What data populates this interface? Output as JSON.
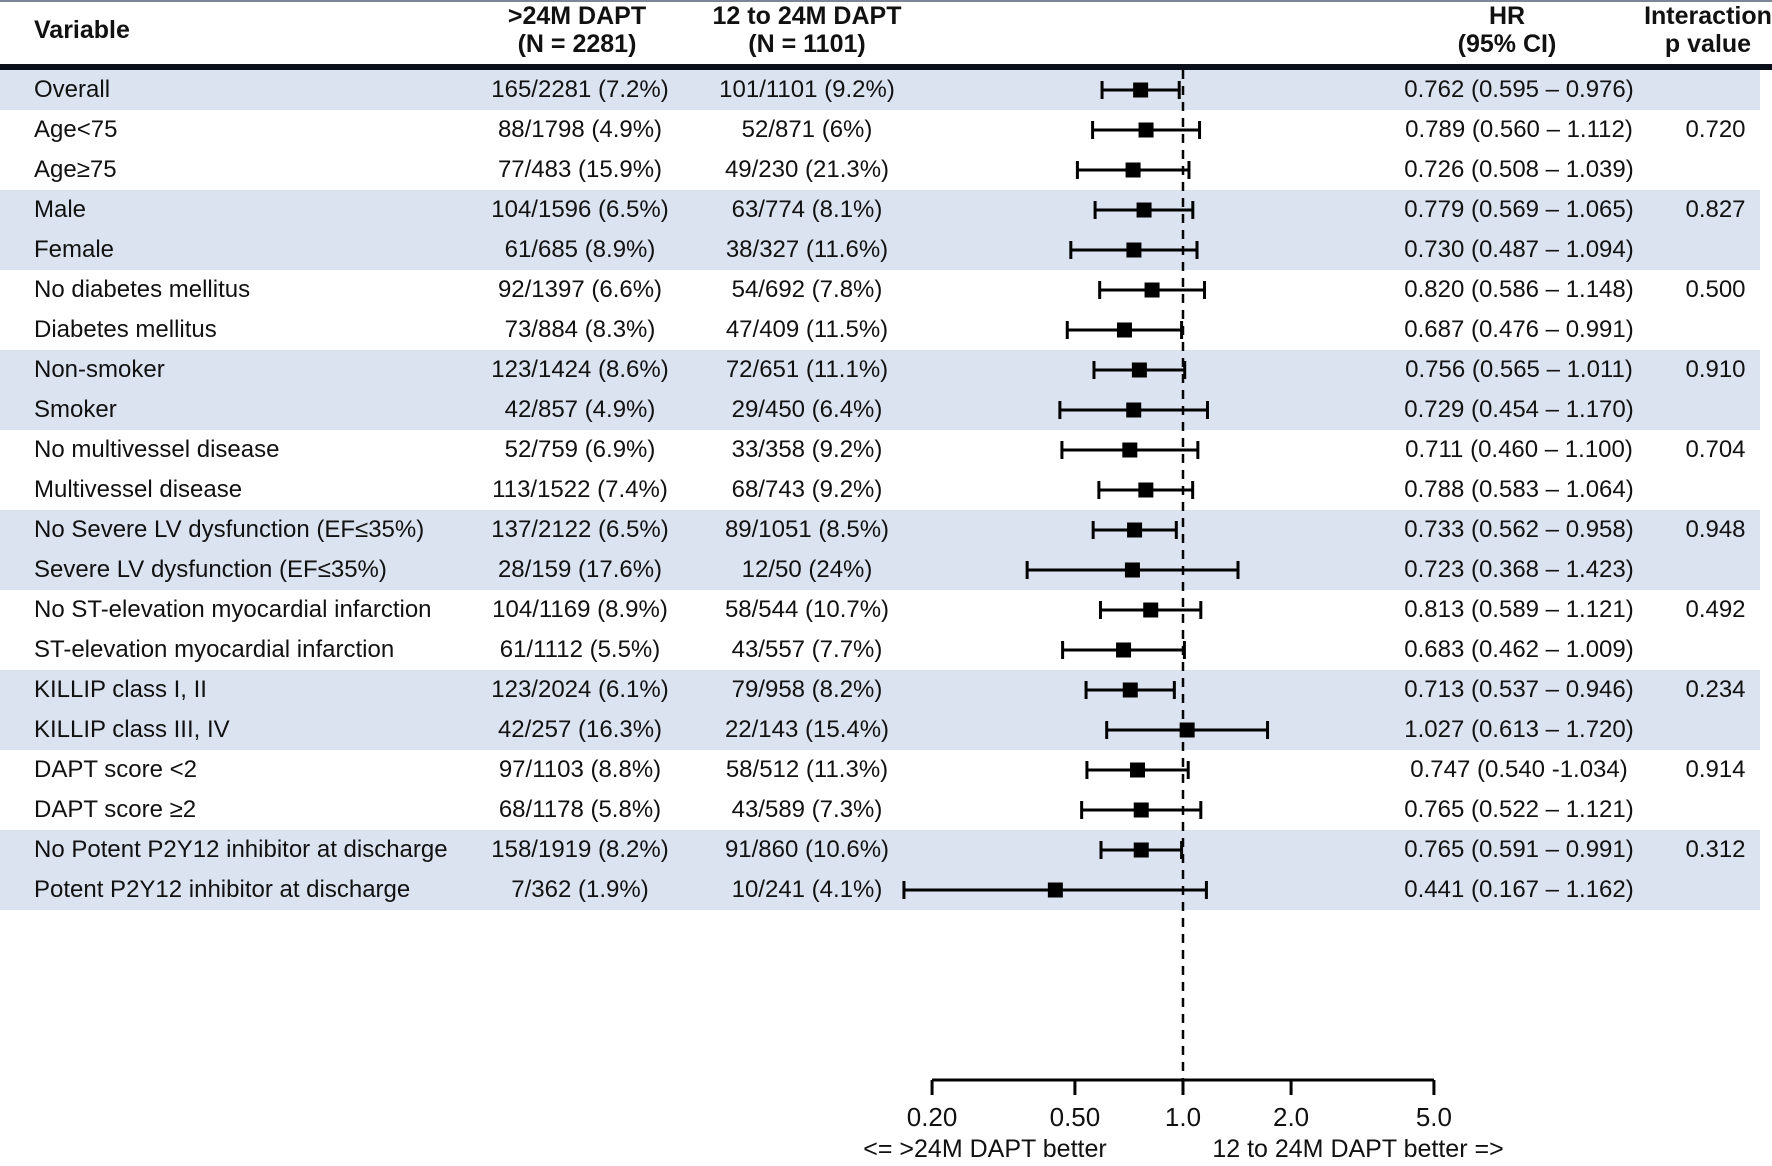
{
  "header": {
    "variable": "Variable",
    "group1_line1": ">24M DAPT",
    "group1_line2": "(N = 2281)",
    "group2_line1": "12 to 24M DAPT",
    "group2_line2": "(N = 1101)",
    "hr_line1": "HR",
    "hr_line2": "(95% CI)",
    "p_line1": "Interaction",
    "p_line2": "p value"
  },
  "colors": {
    "band": "#dce3f0",
    "marker": "#000000",
    "rule": "#0b0f1a"
  },
  "chart_data": {
    "type": "forest",
    "x_axis": {
      "scale": "log",
      "tick_labels": [
        "0.20",
        "0.50",
        "1.0",
        "2.0",
        "5.0"
      ],
      "tick_values": [
        0.2,
        0.5,
        1.0,
        2.0,
        5.0
      ],
      "range": [
        0.2,
        5.0
      ],
      "reference_line": 1.0,
      "left_direction_label": "<=  >24M DAPT better",
      "right_direction_label": "12 to 24M DAPT better  =>"
    },
    "rows": [
      {
        "variable": "Overall",
        "group1": "165/2281 (7.2%)",
        "group2": "101/1101 (9.2%)",
        "hr": 0.762,
        "ci_low": 0.595,
        "ci_high": 0.976,
        "hr_text": "0.762 (0.595 – 0.976)",
        "p_value": "",
        "shaded": true
      },
      {
        "variable": "Age<75",
        "group1": "88/1798 (4.9%)",
        "group2": "52/871 (6%)",
        "hr": 0.789,
        "ci_low": 0.56,
        "ci_high": 1.112,
        "hr_text": "0.789 (0.560 – 1.112)",
        "p_value": "0.720",
        "shaded": false
      },
      {
        "variable": "Age≥75",
        "group1": "77/483 (15.9%)",
        "group2": "49/230 (21.3%)",
        "hr": 0.726,
        "ci_low": 0.508,
        "ci_high": 1.039,
        "hr_text": "0.726 (0.508 – 1.039)",
        "p_value": "",
        "shaded": false
      },
      {
        "variable": "Male",
        "group1": "104/1596 (6.5%)",
        "group2": "63/774 (8.1%)",
        "hr": 0.779,
        "ci_low": 0.569,
        "ci_high": 1.065,
        "hr_text": "0.779 (0.569 – 1.065)",
        "p_value": "0.827",
        "shaded": true
      },
      {
        "variable": "Female",
        "group1": "61/685 (8.9%)",
        "group2": "38/327 (11.6%)",
        "hr": 0.73,
        "ci_low": 0.487,
        "ci_high": 1.094,
        "hr_text": "0.730 (0.487 – 1.094)",
        "p_value": "",
        "shaded": true
      },
      {
        "variable": "No diabetes mellitus",
        "group1": "92/1397 (6.6%)",
        "group2": "54/692 (7.8%)",
        "hr": 0.82,
        "ci_low": 0.586,
        "ci_high": 1.148,
        "hr_text": "0.820 (0.586 – 1.148)",
        "p_value": "0.500",
        "shaded": false
      },
      {
        "variable": "Diabetes mellitus",
        "group1": "73/884 (8.3%)",
        "group2": "47/409 (11.5%)",
        "hr": 0.687,
        "ci_low": 0.476,
        "ci_high": 0.991,
        "hr_text": "0.687 (0.476 – 0.991)",
        "p_value": "",
        "shaded": false
      },
      {
        "variable": "Non-smoker",
        "group1": "123/1424 (8.6%)",
        "group2": "72/651 (11.1%)",
        "hr": 0.756,
        "ci_low": 0.565,
        "ci_high": 1.011,
        "hr_text": "0.756 (0.565 – 1.011)",
        "p_value": "0.910",
        "shaded": true
      },
      {
        "variable": "Smoker",
        "group1": "42/857 (4.9%)",
        "group2": "29/450 (6.4%)",
        "hr": 0.729,
        "ci_low": 0.454,
        "ci_high": 1.17,
        "hr_text": "0.729 (0.454 – 1.170)",
        "p_value": "",
        "shaded": true
      },
      {
        "variable": "No multivessel disease",
        "group1": "52/759 (6.9%)",
        "group2": "33/358 (9.2%)",
        "hr": 0.711,
        "ci_low": 0.46,
        "ci_high": 1.1,
        "hr_text": "0.711 (0.460 – 1.100)",
        "p_value": "0.704",
        "shaded": false
      },
      {
        "variable": "Multivessel disease",
        "group1": "113/1522 (7.4%)",
        "group2": "68/743 (9.2%)",
        "hr": 0.788,
        "ci_low": 0.583,
        "ci_high": 1.064,
        "hr_text": "0.788 (0.583 – 1.064)",
        "p_value": "",
        "shaded": false
      },
      {
        "variable": "No Severe LV dysfunction (EF≤35%)",
        "group1": "137/2122 (6.5%)",
        "group2": "89/1051 (8.5%)",
        "hr": 0.733,
        "ci_low": 0.562,
        "ci_high": 0.958,
        "hr_text": "0.733 (0.562 – 0.958)",
        "p_value": "0.948",
        "shaded": true
      },
      {
        "variable": "Severe LV dysfunction (EF≤35%)",
        "group1": "28/159 (17.6%)",
        "group2": "12/50 (24%)",
        "hr": 0.723,
        "ci_low": 0.368,
        "ci_high": 1.423,
        "hr_text": "0.723 (0.368 – 1.423)",
        "p_value": "",
        "shaded": true
      },
      {
        "variable": "No ST-elevation myocardial infarction",
        "group1": "104/1169 (8.9%)",
        "group2": "58/544 (10.7%)",
        "hr": 0.813,
        "ci_low": 0.589,
        "ci_high": 1.121,
        "hr_text": "0.813 (0.589 – 1.121)",
        "p_value": "0.492",
        "shaded": false
      },
      {
        "variable": "ST-elevation myocardial infarction",
        "group1": "61/1112 (5.5%)",
        "group2": "43/557 (7.7%)",
        "hr": 0.683,
        "ci_low": 0.462,
        "ci_high": 1.009,
        "hr_text": "0.683 (0.462 – 1.009)",
        "p_value": "",
        "shaded": false
      },
      {
        "variable": "KILLIP class I, II",
        "group1": "123/2024 (6.1%)",
        "group2": "79/958 (8.2%)",
        "hr": 0.713,
        "ci_low": 0.537,
        "ci_high": 0.946,
        "hr_text": "0.713 (0.537 – 0.946)",
        "p_value": "0.234",
        "shaded": true
      },
      {
        "variable": "KILLIP class III, IV",
        "group1": "42/257 (16.3%)",
        "group2": "22/143 (15.4%)",
        "hr": 1.027,
        "ci_low": 0.613,
        "ci_high": 1.72,
        "hr_text": "1.027 (0.613 – 1.720)",
        "p_value": "",
        "shaded": true
      },
      {
        "variable": "DAPT score <2",
        "group1": "97/1103 (8.8%)",
        "group2": "58/512 (11.3%)",
        "hr": 0.747,
        "ci_low": 0.54,
        "ci_high": 1.034,
        "hr_text": "0.747 (0.540 -1.034)",
        "p_value": "0.914",
        "shaded": false
      },
      {
        "variable": "DAPT score ≥2",
        "group1": "68/1178 (5.8%)",
        "group2": "43/589 (7.3%)",
        "hr": 0.765,
        "ci_low": 0.522,
        "ci_high": 1.121,
        "hr_text": "0.765 (0.522 – 1.121)",
        "p_value": "",
        "shaded": false
      },
      {
        "variable": "No Potent P2Y12 inhibitor at discharge",
        "group1": "158/1919 (8.2%)",
        "group2": "91/860 (10.6%)",
        "hr": 0.765,
        "ci_low": 0.591,
        "ci_high": 0.991,
        "hr_text": "0.765 (0.591 – 0.991)",
        "p_value": "0.312",
        "shaded": true
      },
      {
        "variable": "Potent P2Y12 inhibitor at discharge",
        "group1": "7/362 (1.9%)",
        "group2": "10/241 (4.1%)",
        "hr": 0.441,
        "ci_low": 0.167,
        "ci_high": 1.162,
        "hr_text": "0.441 (0.167 – 1.162)",
        "p_value": "",
        "shaded": true
      }
    ]
  }
}
